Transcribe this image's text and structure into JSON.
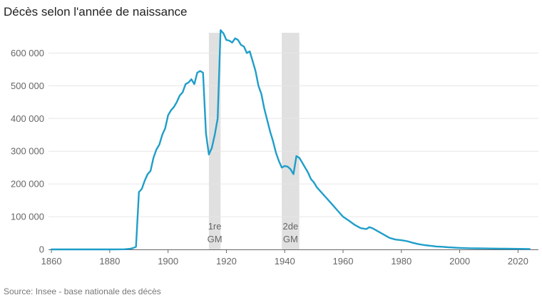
{
  "title": "Décès selon l'année de naissance",
  "source": "Source: Insee - base nationale des décès",
  "colors": {
    "line": "#1f9ec9",
    "band": "#e0e0e0",
    "grid": "#e6e6e6",
    "axis": "#666666"
  },
  "chart_data": {
    "type": "line",
    "title": "Décès selon l'année de naissance",
    "xlim": [
      1859,
      2027
    ],
    "ylim": [
      0,
      675000
    ],
    "x_ticks": [
      1860,
      1880,
      1900,
      1920,
      1940,
      1960,
      1980,
      2000,
      2020
    ],
    "x_tick_labels": [
      "1860",
      "1880",
      "1900",
      "1920",
      "1940",
      "1960",
      "1980",
      "2000",
      "2020"
    ],
    "y_ticks": [
      0,
      100000,
      200000,
      300000,
      400000,
      500000,
      600000
    ],
    "y_tick_labels": [
      "0",
      "100 000",
      "200 000",
      "300 000",
      "400 000",
      "500 000",
      "600 000"
    ],
    "grid": "horizontal",
    "shaded_periods": [
      {
        "start": 1914,
        "end": 1918,
        "label_lines": [
          "1re",
          "GM"
        ]
      },
      {
        "start": 1939,
        "end": 1945,
        "label_lines": [
          "2de",
          "GM"
        ]
      }
    ],
    "series": [
      {
        "x": [
          1860,
          1865,
          1870,
          1875,
          1880,
          1885,
          1887,
          1888,
          1889,
          1890,
          1891,
          1892,
          1893,
          1894,
          1895,
          1896,
          1897,
          1898,
          1899,
          1900,
          1901,
          1902,
          1903,
          1904,
          1905,
          1906,
          1907,
          1908,
          1909,
          1910,
          1911,
          1912,
          1913,
          1914,
          1915,
          1916,
          1917,
          1918,
          1919,
          1920,
          1921,
          1922,
          1923,
          1924,
          1925,
          1926,
          1927,
          1928,
          1929,
          1930,
          1931,
          1932,
          1933,
          1934,
          1935,
          1936,
          1937,
          1938,
          1939,
          1940,
          1941,
          1942,
          1943,
          1944,
          1945,
          1946,
          1947,
          1948,
          1949,
          1950,
          1951,
          1952,
          1953,
          1954,
          1955,
          1956,
          1957,
          1958,
          1959,
          1960,
          1962,
          1964,
          1966,
          1968,
          1969,
          1970,
          1972,
          1974,
          1976,
          1978,
          1980,
          1982,
          1984,
          1986,
          1988,
          1990,
          1992,
          1994,
          1996,
          1998,
          2000,
          2002,
          2004,
          2006,
          2008,
          2010,
          2012,
          2014,
          2016,
          2018,
          2020,
          2022,
          2024
        ],
        "y": [
          0,
          0,
          0,
          0,
          0,
          500,
          2000,
          4000,
          8000,
          175000,
          185000,
          210000,
          230000,
          240000,
          280000,
          305000,
          320000,
          350000,
          370000,
          410000,
          425000,
          435000,
          450000,
          470000,
          480000,
          505000,
          510000,
          520000,
          505000,
          540000,
          545000,
          540000,
          355000,
          290000,
          310000,
          350000,
          400000,
          670000,
          660000,
          640000,
          638000,
          632000,
          645000,
          640000,
          625000,
          620000,
          600000,
          605000,
          575000,
          545000,
          500000,
          475000,
          430000,
          395000,
          360000,
          330000,
          295000,
          270000,
          250000,
          255000,
          253000,
          245000,
          230000,
          285000,
          280000,
          265000,
          250000,
          235000,
          215000,
          205000,
          190000,
          180000,
          170000,
          160000,
          150000,
          140000,
          130000,
          120000,
          110000,
          100000,
          88000,
          75000,
          65000,
          62000,
          68000,
          65000,
          55000,
          45000,
          35000,
          30000,
          28000,
          25000,
          20000,
          16000,
          13000,
          11000,
          9000,
          8000,
          6500,
          5500,
          4500,
          4000,
          3500,
          3200,
          3000,
          2800,
          2600,
          2400,
          2200,
          2000,
          1800,
          1500,
          1000
        ]
      }
    ]
  }
}
